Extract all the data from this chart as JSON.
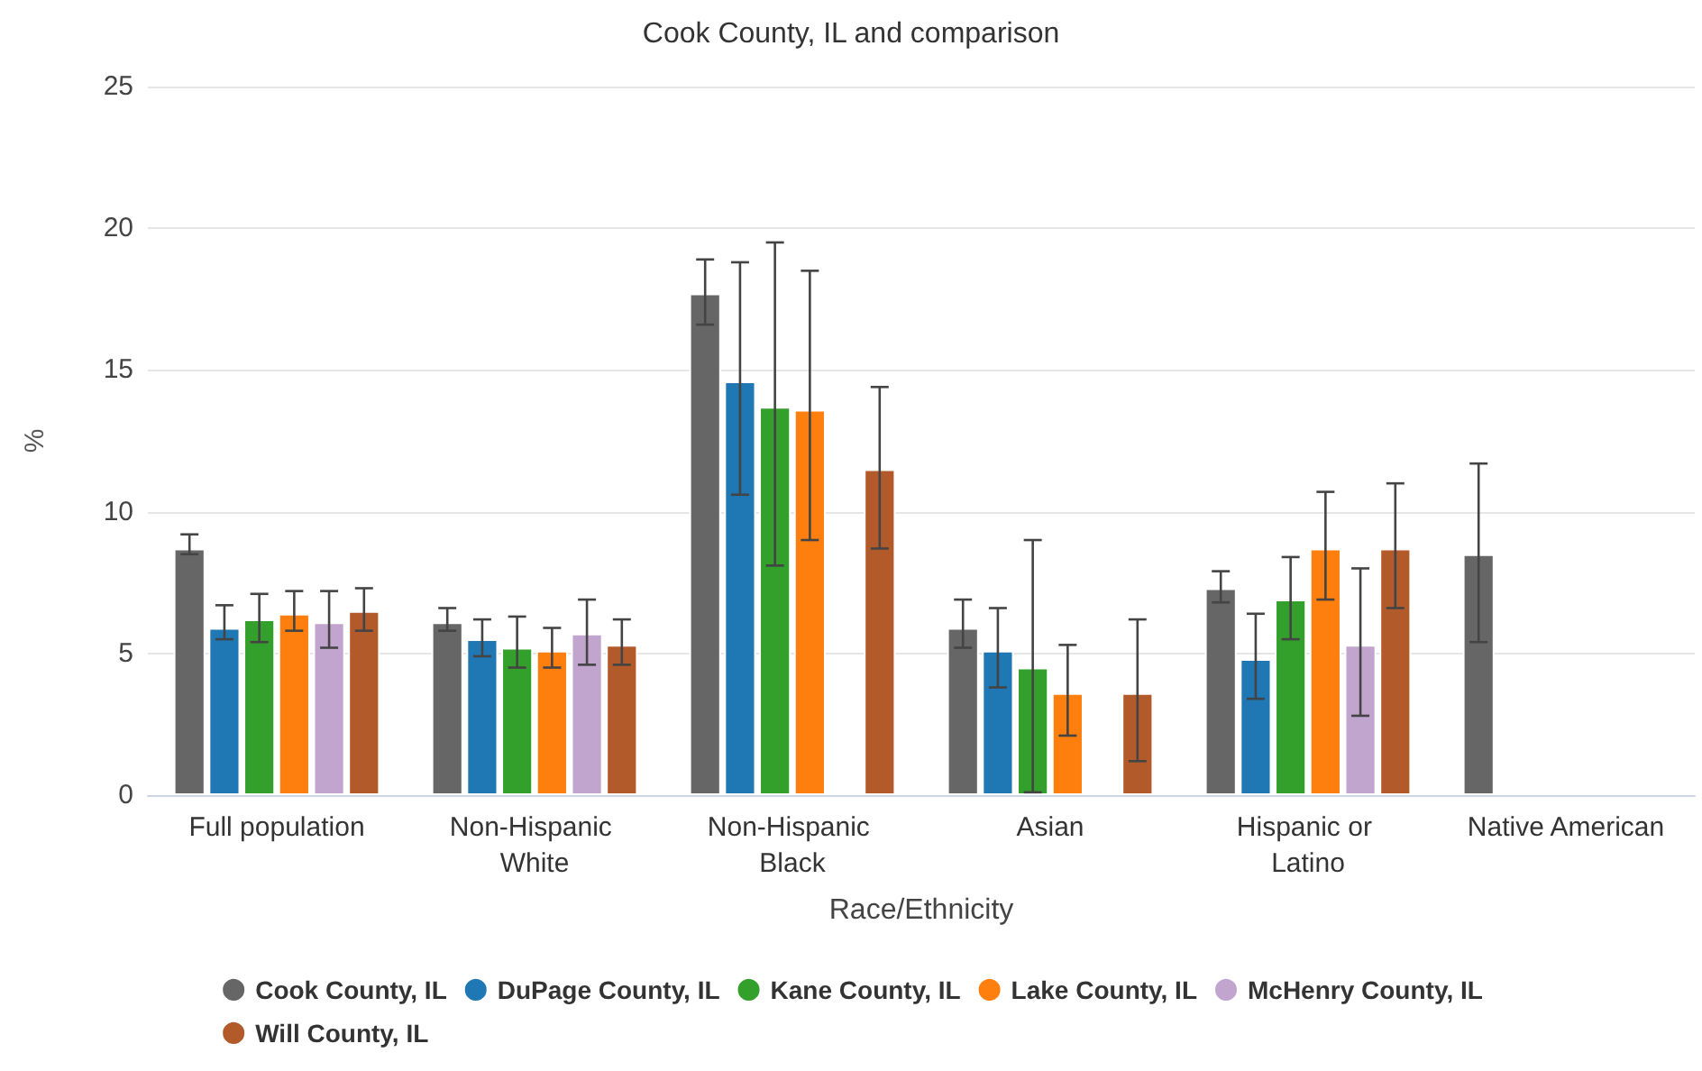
{
  "chart_data": {
    "type": "bar",
    "title": "Cook County, IL and comparison",
    "xlabel": "Race/Ethnicity",
    "ylabel": "%",
    "categories": [
      "Full population",
      "Non-Hispanic White",
      "Non-Hispanic Black",
      "Asian",
      "Hispanic or Latino",
      "Native American"
    ],
    "series": [
      {
        "name": "Cook County, IL",
        "color": "#666666",
        "values": [
          8.7,
          6.1,
          17.7,
          5.9,
          7.3,
          8.5
        ],
        "errors": [
          [
            8.5,
            9.2
          ],
          [
            5.8,
            6.6
          ],
          [
            16.6,
            18.9
          ],
          [
            5.2,
            6.9
          ],
          [
            6.8,
            7.9
          ],
          [
            5.4,
            11.7
          ]
        ]
      },
      {
        "name": "DuPage County, IL",
        "color": "#1f77b4",
        "values": [
          5.9,
          5.5,
          14.6,
          5.1,
          4.8,
          null
        ],
        "errors": [
          [
            5.5,
            6.7
          ],
          [
            4.9,
            6.2
          ],
          [
            10.6,
            18.8
          ],
          [
            3.8,
            6.6
          ],
          [
            3.4,
            6.4
          ],
          null
        ]
      },
      {
        "name": "Kane County, IL",
        "color": "#33a02c",
        "values": [
          6.2,
          5.2,
          13.7,
          4.5,
          6.9,
          null
        ],
        "errors": [
          [
            5.4,
            7.1
          ],
          [
            4.5,
            6.3
          ],
          [
            8.1,
            19.5
          ],
          [
            0.1,
            9.0
          ],
          [
            5.5,
            8.4
          ],
          null
        ]
      },
      {
        "name": "Lake County, IL",
        "color": "#ff7f0e",
        "values": [
          6.4,
          5.1,
          13.6,
          3.6,
          8.7,
          null
        ],
        "errors": [
          [
            5.8,
            7.2
          ],
          [
            4.5,
            5.9
          ],
          [
            9.0,
            18.5
          ],
          [
            2.1,
            5.3
          ],
          [
            6.9,
            10.7
          ],
          null
        ]
      },
      {
        "name": "McHenry County, IL",
        "color": "#c2a5cf",
        "values": [
          6.1,
          5.7,
          null,
          null,
          5.3,
          null
        ],
        "errors": [
          [
            5.2,
            7.2
          ],
          [
            4.6,
            6.9
          ],
          null,
          null,
          [
            2.8,
            8.0
          ],
          null
        ]
      },
      {
        "name": "Will County, IL",
        "color": "#b35a2a",
        "values": [
          6.5,
          5.3,
          11.5,
          3.6,
          8.7,
          null
        ],
        "errors": [
          [
            5.8,
            7.3
          ],
          [
            4.6,
            6.2
          ],
          [
            8.7,
            14.4
          ],
          [
            1.2,
            6.2
          ],
          [
            6.6,
            11.0
          ],
          null
        ]
      }
    ],
    "ylim": [
      0,
      25
    ],
    "yticks": [
      0,
      5,
      10,
      15,
      20,
      25
    ],
    "grid": "y",
    "legend": "bottom"
  }
}
